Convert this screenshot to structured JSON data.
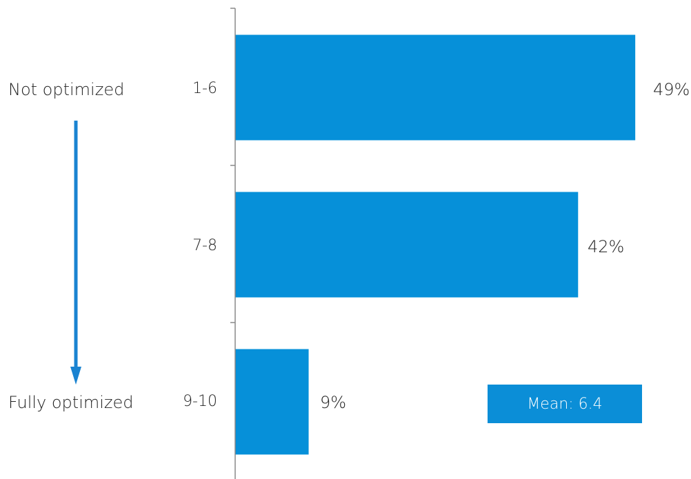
{
  "chart_data": {
    "type": "bar",
    "orientation": "horizontal",
    "categories": [
      "1-6",
      "7-8",
      "9-10"
    ],
    "values": [
      49,
      42,
      9
    ],
    "data_labels": [
      "49%",
      "42%",
      "9%"
    ],
    "xlim": [
      0,
      50
    ],
    "grid": false,
    "legend": "none",
    "bar_color": "#0690d9"
  },
  "scale": {
    "top_label": "Not optimized",
    "bottom_label": "Fully optimized",
    "arrow_color": "#1a83d1"
  },
  "mean_box": {
    "label": "Mean: 6.4",
    "color": "#0b8ed7"
  }
}
